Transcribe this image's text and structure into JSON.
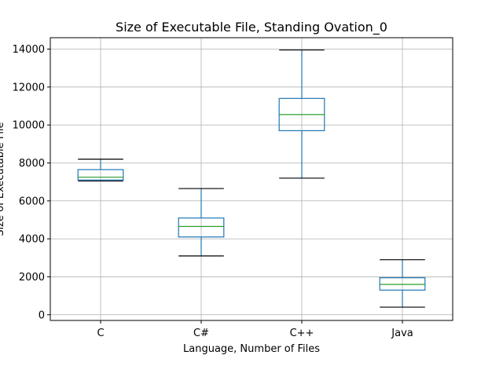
{
  "chart_data": {
    "type": "box",
    "title": "Size of Executable File, Standing Ovation_0",
    "xlabel": "Language, Number of Files",
    "ylabel": "Size of Executable File",
    "categories": [
      "C",
      "C#",
      "C++",
      "Java"
    ],
    "boxes": [
      {
        "category": "C",
        "whisker_low": 7050,
        "q1": 7100,
        "median": 7250,
        "q3": 7650,
        "whisker_high": 8200
      },
      {
        "category": "C#",
        "whisker_low": 3100,
        "q1": 4100,
        "median": 4650,
        "q3": 5100,
        "whisker_high": 6650
      },
      {
        "category": "C++",
        "whisker_low": 7200,
        "q1": 9700,
        "median": 10550,
        "q3": 11400,
        "whisker_high": 13950
      },
      {
        "category": "Java",
        "whisker_low": 400,
        "q1": 1300,
        "median": 1600,
        "q3": 1950,
        "whisker_high": 2900
      }
    ],
    "yticks": [
      0,
      2000,
      4000,
      6000,
      8000,
      10000,
      12000,
      14000
    ],
    "ylim": [
      -300,
      14600
    ],
    "grid": true,
    "colors": {
      "box": "#1f77b4",
      "median": "#2ca02c",
      "whisker_cap": "#000000",
      "grid": "#b0b0b0"
    }
  }
}
